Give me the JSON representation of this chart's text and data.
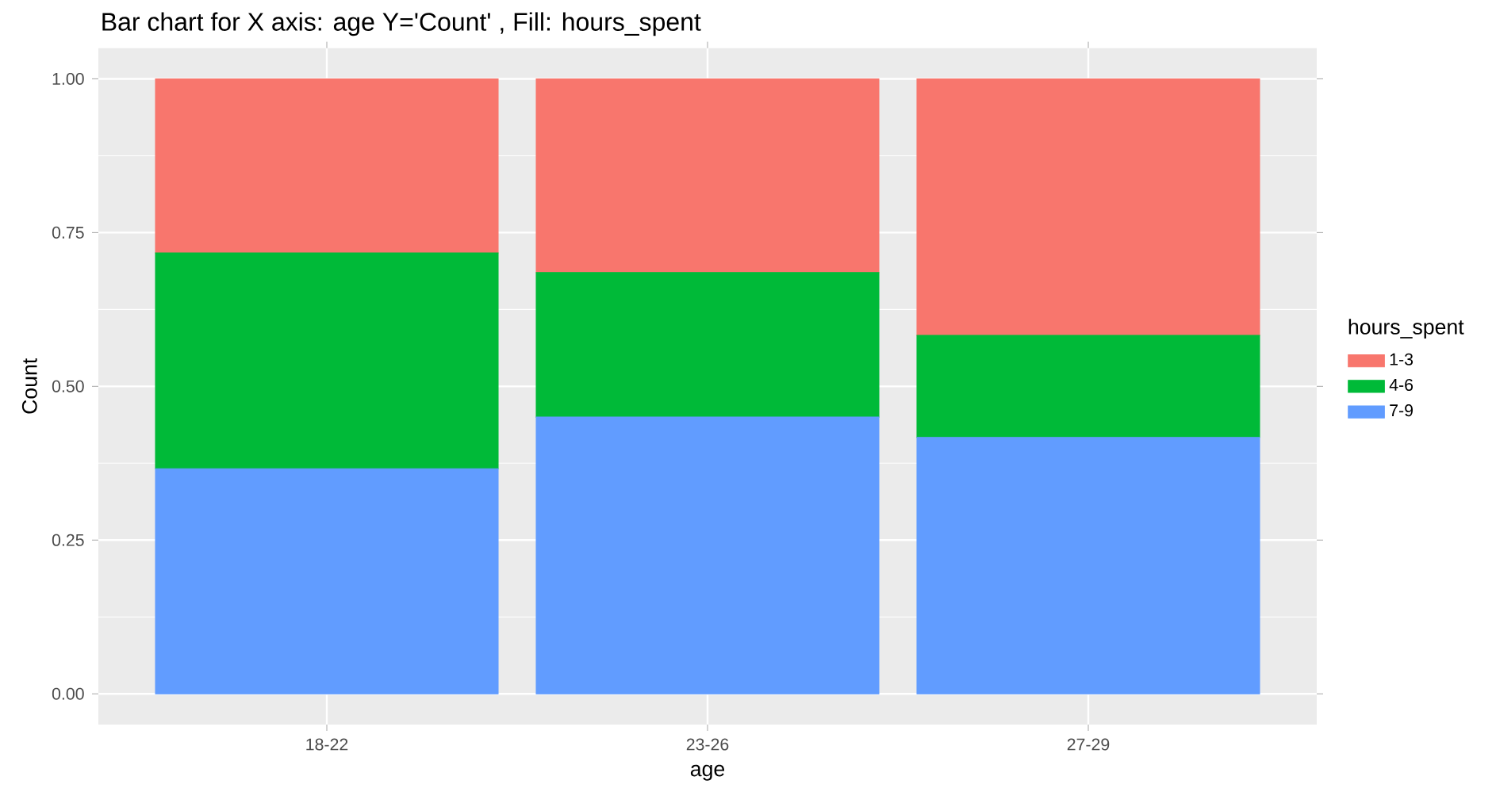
{
  "chart_data": {
    "type": "bar",
    "stacked": true,
    "title": "Bar chart for X axis: age Y='Count' , Fill: hours_spent",
    "xlabel": "age",
    "ylabel": "Count",
    "legend_title": "hours_spent",
    "legend": "right",
    "grid": true,
    "categories": [
      "18-22",
      "23-26",
      "27-29"
    ],
    "series": [
      {
        "name": "7-9",
        "color": "#619cff",
        "values": [
          0.366,
          0.45,
          0.417
        ]
      },
      {
        "name": "4-6",
        "color": "#00ba38",
        "values": [
          0.351,
          0.235,
          0.166
        ]
      },
      {
        "name": "1-3",
        "color": "#f8766d",
        "values": [
          0.283,
          0.315,
          0.417
        ]
      }
    ],
    "ylim": [
      -0.05,
      1.05
    ],
    "yticks": [
      {
        "value": 0,
        "label": "0.00"
      },
      {
        "value": 0.25,
        "label": "0.25"
      },
      {
        "value": 0.5,
        "label": "0.50"
      },
      {
        "value": 0.75,
        "label": "0.75"
      },
      {
        "value": 1,
        "label": "1.00"
      }
    ]
  }
}
